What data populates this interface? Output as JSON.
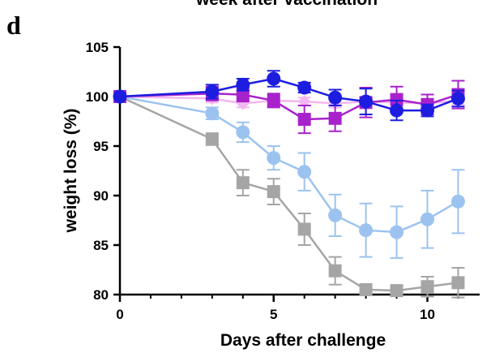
{
  "panel_label": "d",
  "top_title_fragment": "week after vaccination",
  "chart_data": {
    "type": "line",
    "xlabel": "Days after challenge",
    "ylabel": "weight loss (%)",
    "xlim": [
      0,
      11.7
    ],
    "ylim": [
      80,
      105
    ],
    "x_ticks_major": [
      0,
      5,
      10
    ],
    "x_ticks_minor": [
      1,
      2,
      3,
      4,
      6,
      7,
      8,
      9,
      11
    ],
    "y_ticks": [
      80,
      85,
      90,
      95,
      100,
      105
    ],
    "grid": false,
    "legend": "none",
    "series": [
      {
        "color": "#a5a5a5",
        "marker": "square",
        "x": [
          0,
          3,
          4,
          5,
          6,
          7,
          8,
          9,
          10,
          11
        ],
        "values": [
          100,
          95.7,
          91.3,
          90.4,
          86.6,
          82.4,
          80.5,
          80.4,
          80.8,
          81.2
        ],
        "err": [
          0,
          0.6,
          1.3,
          1.3,
          1.6,
          1.4,
          0.5,
          0.5,
          1.0,
          1.5
        ]
      },
      {
        "color": "#9cc3ef",
        "marker": "circle",
        "x": [
          0,
          3,
          4,
          5,
          6,
          7,
          8,
          9,
          10,
          11
        ],
        "values": [
          100,
          98.3,
          96.4,
          93.8,
          92.4,
          88.0,
          86.5,
          86.3,
          87.6,
          89.4
        ],
        "err": [
          0,
          0.6,
          1.0,
          1.2,
          1.9,
          2.1,
          2.7,
          2.6,
          2.9,
          3.2
        ]
      },
      {
        "color": "#f4b6f0",
        "marker": "diamond",
        "x": [
          0,
          3,
          4,
          5,
          6,
          7,
          8,
          9,
          10,
          11
        ],
        "values": [
          100,
          99.8,
          99.3,
          99.6,
          99.5,
          99.3,
          99.5,
          99.4,
          99.3,
          99.6
        ],
        "err": [
          0,
          0.4,
          0.4,
          0.4,
          0.4,
          0.4,
          0.4,
          0.4,
          0.4,
          0.4
        ]
      },
      {
        "color": "#a822cc",
        "marker": "square",
        "x": [
          0,
          3,
          4,
          5,
          6,
          7,
          8,
          9,
          10,
          11
        ],
        "values": [
          100,
          100.3,
          100.2,
          99.6,
          97.7,
          97.8,
          99.4,
          99.7,
          99.2,
          100.2
        ],
        "err": [
          0,
          0.7,
          0.7,
          0.7,
          1.4,
          1.3,
          1.5,
          1.3,
          1.0,
          1.4
        ]
      },
      {
        "color": "#1d1de0",
        "marker": "circle",
        "x": [
          0,
          3,
          4,
          5,
          6,
          7,
          8,
          9,
          10,
          11
        ],
        "values": [
          100,
          100.5,
          101.2,
          101.8,
          100.9,
          99.9,
          99.5,
          98.6,
          98.6,
          99.8
        ],
        "err": [
          0,
          0.7,
          0.6,
          0.8,
          0.5,
          0.8,
          1.3,
          1.0,
          0.6,
          0.8
        ]
      }
    ]
  }
}
